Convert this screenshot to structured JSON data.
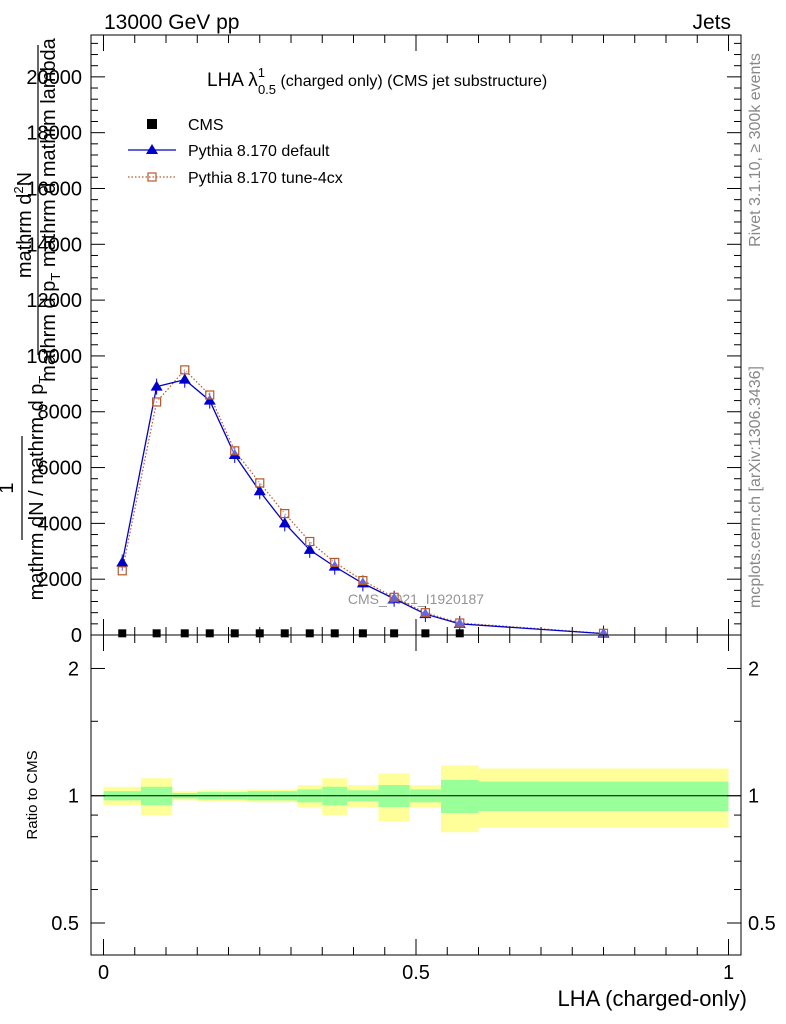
{
  "header": {
    "left": "13000 GeV pp",
    "right": "Jets"
  },
  "side": {
    "rivet": "Rivet 3.1.10, ≥ 300k events",
    "mcplots": "mcplots.cern.ch [arXiv:1306.3436]"
  },
  "watermark": "CMS_2021_I1920187",
  "chart_data": [
    {
      "type": "line",
      "panel": "main",
      "title": {
        "prefix": "LHA λ",
        "sup": "1",
        "sub": "0.5",
        "suffix": " (charged only) (CMS jet substructure)"
      },
      "ylabel": "1 / mathrm d N / mathrm d p_T mathrm d^2 N / mathrm d p_T mathrm d lambda",
      "ylabel_parts": {
        "numerator": "1",
        "denominator": "mathrm dN / mathrm d p",
        "den_sub": "T",
        "second_numerator": "mathrm d",
        "second_numerator_sup": "2",
        "second_numerator_rest": "N",
        "second_denominator": "mathrm d p",
        "second_den_sub": "T",
        "second_denominator_rest": " mathrm d mathrm lambda"
      },
      "xlim": [
        -0.02,
        1.02
      ],
      "ylim": [
        0,
        21500
      ],
      "yticks": [
        0,
        2000,
        4000,
        6000,
        8000,
        10000,
        12000,
        14000,
        16000,
        18000,
        20000
      ],
      "ytick_labels": [
        "0",
        "2000",
        "4000",
        "6000",
        "8000",
        "10000",
        "12000",
        "14000",
        "16000",
        "18000",
        "20000"
      ],
      "legend": [
        {
          "label": "CMS",
          "color": "#000000",
          "marker": "square"
        },
        {
          "label": "Pythia 8.170 default",
          "color": "#0000cc",
          "marker": "triangle"
        },
        {
          "label": "Pythia 8.170 tune-4cx",
          "color": "#b5592b",
          "marker": "open-square"
        }
      ],
      "series": [
        {
          "name": "CMS",
          "x": [
            0.03,
            0.085,
            0.13,
            0.17,
            0.21,
            0.25,
            0.29,
            0.33,
            0.37,
            0.415,
            0.465,
            0.515,
            0.57
          ],
          "y": [
            60,
            60,
            60,
            60,
            60,
            60,
            60,
            60,
            60,
            60,
            60,
            60,
            60
          ]
        },
        {
          "name": "Pythia 8.170 default",
          "x": [
            0.03,
            0.085,
            0.13,
            0.17,
            0.21,
            0.25,
            0.29,
            0.33,
            0.37,
            0.415,
            0.465,
            0.515,
            0.57,
            0.8
          ],
          "y": [
            2600,
            8900,
            9150,
            8400,
            6450,
            5150,
            4000,
            3050,
            2450,
            1850,
            1300,
            750,
            400,
            50
          ]
        },
        {
          "name": "Pythia 8.170 tune-4cx",
          "x": [
            0.03,
            0.085,
            0.13,
            0.17,
            0.21,
            0.25,
            0.29,
            0.33,
            0.37,
            0.415,
            0.465,
            0.515,
            0.57,
            0.8
          ],
          "y": [
            2300,
            8350,
            9500,
            8600,
            6600,
            5450,
            4350,
            3350,
            2600,
            1950,
            1350,
            800,
            430,
            60
          ]
        }
      ]
    },
    {
      "type": "area",
      "panel": "ratio",
      "ylabel": "Ratio to CMS",
      "xlabel": "LHA (charged-only)",
      "ylim_log": [
        0.42,
        2.4
      ],
      "yticks": [
        0.5,
        1,
        2
      ],
      "ytick_labels": [
        "0.5",
        "1",
        "2"
      ],
      "xticks": [
        0,
        0.5,
        1
      ],
      "xtick_labels": [
        "0",
        "0.5",
        "1"
      ],
      "bins": [
        {
          "lo": 0.0,
          "hi": 0.06,
          "stat": 0.025,
          "total": 0.05
        },
        {
          "lo": 0.06,
          "hi": 0.11,
          "stat": 0.05,
          "total": 0.1
        },
        {
          "lo": 0.11,
          "hi": 0.15,
          "stat": 0.015,
          "total": 0.025
        },
        {
          "lo": 0.15,
          "hi": 0.19,
          "stat": 0.02,
          "total": 0.03
        },
        {
          "lo": 0.19,
          "hi": 0.23,
          "stat": 0.02,
          "total": 0.03
        },
        {
          "lo": 0.23,
          "hi": 0.27,
          "stat": 0.025,
          "total": 0.035
        },
        {
          "lo": 0.27,
          "hi": 0.31,
          "stat": 0.025,
          "total": 0.035
        },
        {
          "lo": 0.31,
          "hi": 0.35,
          "stat": 0.035,
          "total": 0.06
        },
        {
          "lo": 0.35,
          "hi": 0.39,
          "stat": 0.05,
          "total": 0.1
        },
        {
          "lo": 0.39,
          "hi": 0.44,
          "stat": 0.03,
          "total": 0.06
        },
        {
          "lo": 0.44,
          "hi": 0.49,
          "stat": 0.06,
          "total": 0.13
        },
        {
          "lo": 0.49,
          "hi": 0.54,
          "stat": 0.035,
          "total": 0.06
        },
        {
          "lo": 0.54,
          "hi": 0.6,
          "stat": 0.09,
          "total": 0.18
        },
        {
          "lo": 0.6,
          "hi": 1.0,
          "stat": 0.08,
          "total": 0.16
        }
      ]
    }
  ],
  "colors": {
    "cms": "#000000",
    "pythia_default": "#0000cc",
    "pythia_tune": "#b5592b",
    "band_stat": "#99ff99",
    "band_total": "#ffff99",
    "side_text": "#888888"
  }
}
